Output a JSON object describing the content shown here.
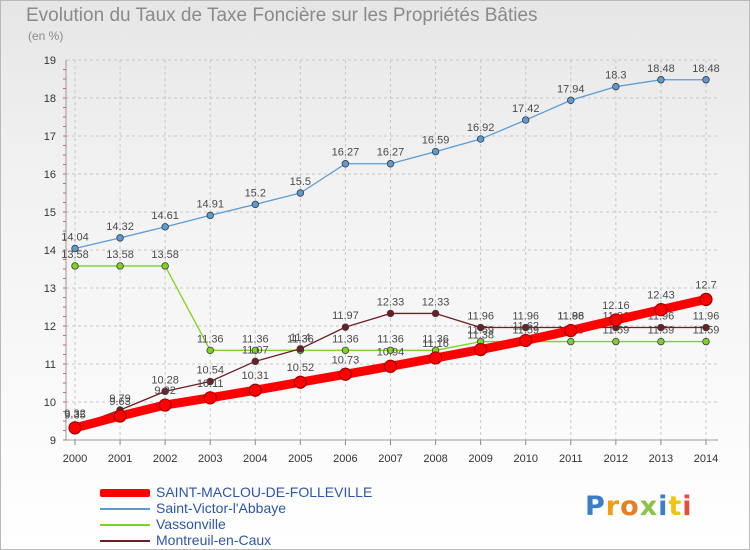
{
  "header": {
    "title": "Evolution du Taux de Taxe Foncière sur les Propriétés Bâties",
    "unit": "(en %)"
  },
  "logo": {
    "text": "Proxiti"
  },
  "colors": {
    "saint_maclou": "#ff0000",
    "saint_victor": "#5b9bd5",
    "vassonville": "#7ed321",
    "montreuil": "#6e1f24",
    "grid": "#c8c8c8",
    "axis_text": "#333333",
    "label_text": "#4a4a4a"
  },
  "chart_data": {
    "type": "line",
    "title": "Evolution du Taux de Taxe Foncière sur les Propriétés Bâties",
    "ylabel": "(en %)",
    "xlabel": "",
    "ylim": [
      9,
      19
    ],
    "yticks": [
      9,
      10,
      11,
      12,
      13,
      14,
      15,
      16,
      17,
      18,
      19
    ],
    "grid": true,
    "legend_position": "bottom-left",
    "categories": [
      "2000",
      "2001",
      "2002",
      "2003",
      "2004",
      "2005",
      "2006",
      "2007",
      "2008",
      "2009",
      "2010",
      "2011",
      "2012",
      "2013",
      "2014"
    ],
    "series": [
      {
        "name": "Saint-Victor-l'Abbaye",
        "key": "saint_victor",
        "values": [
          14.04,
          14.32,
          14.61,
          14.91,
          15.2,
          15.5,
          16.27,
          16.27,
          16.59,
          16.92,
          17.42,
          17.94,
          18.3,
          18.48,
          18.48
        ],
        "labels": [
          "14.04",
          "14.32",
          "14.61",
          "14.91",
          "15.2",
          "15.5",
          "16.27",
          "16.27",
          "16.59",
          "16.92",
          "17.42",
          "17.94",
          "18.3",
          "18.48",
          "18.48"
        ]
      },
      {
        "name": "Vassonville",
        "key": "vassonville",
        "values": [
          13.58,
          13.58,
          13.58,
          11.36,
          11.36,
          11.36,
          11.36,
          11.36,
          11.36,
          11.59,
          11.59,
          11.59,
          11.59,
          11.59,
          11.59
        ],
        "labels": [
          "13.58",
          "13.58",
          "13.58",
          "11.36",
          "11.36",
          "11.36",
          "11.36",
          "11.36",
          "11.36",
          "11.59",
          "11.59",
          "11.59",
          "11.59",
          "11.59",
          "11.59"
        ]
      },
      {
        "name": "Montreuil-en-Caux",
        "key": "montreuil",
        "values": [
          9.35,
          9.79,
          10.28,
          10.54,
          11.07,
          11.4,
          11.97,
          12.33,
          12.33,
          11.96,
          11.96,
          11.96,
          11.96,
          11.96,
          11.96
        ],
        "labels": [
          "9.35",
          "9.79",
          "10.28",
          "10.54",
          "11.07",
          "11.4",
          "11.97",
          "12.33",
          "12.33",
          "11.96",
          "11.96",
          "11.96",
          "11.96",
          "11.96",
          "11.96"
        ]
      },
      {
        "name": "SAINT-MACLOU-DE-FOLLEVILLE",
        "key": "saint_maclou",
        "values": [
          9.32,
          9.63,
          9.92,
          10.11,
          10.31,
          10.52,
          10.73,
          10.94,
          11.16,
          11.38,
          11.62,
          11.88,
          12.16,
          12.43,
          12.7
        ],
        "labels": [
          "9.32",
          "9.63",
          "9.92",
          "10.11",
          "10.31",
          "10.52",
          "10.73",
          "10.94",
          "11.16",
          "11.38",
          "11.62",
          "11.88",
          "12.16",
          "12.43",
          "12.7"
        ]
      }
    ],
    "legend_order": [
      "SAINT-MACLOU-DE-FOLLEVILLE",
      "Saint-Victor-l'Abbaye",
      "Vassonville",
      "Montreuil-en-Caux"
    ]
  }
}
